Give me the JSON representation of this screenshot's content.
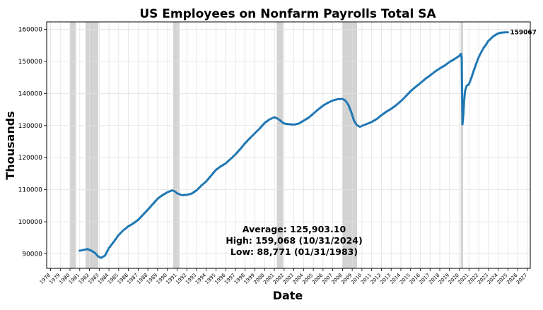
{
  "chart_data": {
    "type": "line",
    "title": "US Employees on Nonfarm Payrolls Total SA",
    "xlabel": "Date",
    "ylabel": "Thousands",
    "ylim": [
      85500,
      162300
    ],
    "xlim": [
      1977.6,
      2027.3
    ],
    "y_ticks": [
      90000,
      100000,
      110000,
      120000,
      130000,
      140000,
      150000,
      160000
    ],
    "y_tick_labels": [
      "90000",
      "100000",
      "110000",
      "120000",
      "130000",
      "140000",
      "150000",
      "160000"
    ],
    "x_tick_labels": [
      "1978",
      "1979",
      "1980",
      "1981",
      "1982",
      "1983",
      "1984",
      "1985",
      "1986",
      "1987",
      "1988",
      "1989",
      "1990",
      "1991",
      "1992",
      "1993",
      "1994",
      "1995",
      "1996",
      "1997",
      "1998",
      "1999",
      "2000",
      "2001",
      "2002",
      "2003",
      "2004",
      "2005",
      "2006",
      "2007",
      "2008",
      "2009",
      "2010",
      "2011",
      "2012",
      "2013",
      "2014",
      "2015",
      "2016",
      "2017",
      "2018",
      "2019",
      "2020",
      "2021",
      "2022",
      "2023",
      "2024",
      "2025",
      "2026",
      "2027"
    ],
    "grid": true,
    "recession_shading": [
      {
        "start": 1980.0,
        "end": 1980.6
      },
      {
        "start": 1981.6,
        "end": 1982.9
      },
      {
        "start": 1990.6,
        "end": 1991.25
      },
      {
        "start": 2001.25,
        "end": 2001.9
      },
      {
        "start": 2008.0,
        "end": 2009.5
      },
      {
        "start": 2020.15,
        "end": 2020.4
      }
    ],
    "series": [
      {
        "name": "",
        "color": "#1f77b4",
        "x": [
          1981.0,
          1981.5,
          1981.8,
          1982.2,
          1982.6,
          1982.9,
          1983.2,
          1983.6,
          1984.0,
          1984.5,
          1985.0,
          1985.5,
          1986.0,
          1986.5,
          1987.0,
          1987.5,
          1988.0,
          1988.5,
          1989.0,
          1989.5,
          1990.0,
          1990.5,
          1990.7,
          1991.0,
          1991.5,
          1992.0,
          1992.5,
          1993.0,
          1993.5,
          1994.0,
          1994.5,
          1995.0,
          1995.5,
          1996.0,
          1996.5,
          1997.0,
          1997.5,
          1998.0,
          1998.5,
          1999.0,
          1999.5,
          2000.0,
          2000.5,
          2001.0,
          2001.3,
          2001.6,
          2001.9,
          2002.2,
          2002.6,
          2003.0,
          2003.5,
          2004.0,
          2004.5,
          2005.0,
          2005.5,
          2006.0,
          2006.5,
          2007.0,
          2007.5,
          2008.0,
          2008.3,
          2008.6,
          2008.9,
          2009.2,
          2009.5,
          2009.8,
          2010.0,
          2010.5,
          2011.0,
          2011.5,
          2012.0,
          2012.5,
          2013.0,
          2013.5,
          2014.0,
          2014.5,
          2015.0,
          2015.5,
          2016.0,
          2016.5,
          2017.0,
          2017.5,
          2018.0,
          2018.5,
          2019.0,
          2019.5,
          2020.0,
          2020.17,
          2020.25,
          2020.33,
          2020.42,
          2020.5,
          2020.6,
          2020.75,
          2021.0,
          2021.25,
          2021.5,
          2021.75,
          2022.0,
          2022.25,
          2022.5,
          2022.75,
          2023.0,
          2023.25,
          2023.5,
          2023.75,
          2024.0,
          2024.25,
          2024.5,
          2024.83,
          2025.0
        ],
        "y": [
          91000,
          91300,
          91500,
          91000,
          90200,
          89200,
          88771,
          89500,
          91800,
          93800,
          95900,
          97400,
          98600,
          99500,
          100600,
          102200,
          103800,
          105500,
          107200,
          108300,
          109200,
          109800,
          109600,
          108900,
          108300,
          108400,
          108800,
          109800,
          111300,
          112600,
          114400,
          116200,
          117300,
          118200,
          119600,
          121000,
          122700,
          124500,
          126100,
          127600,
          129100,
          130800,
          131900,
          132600,
          132200,
          131600,
          130800,
          130500,
          130400,
          130300,
          130600,
          131500,
          132400,
          133700,
          135000,
          136200,
          137100,
          137800,
          138200,
          138300,
          137800,
          136500,
          134200,
          131400,
          130100,
          129600,
          129900,
          130500,
          131100,
          132000,
          133200,
          134300,
          135200,
          136300,
          137600,
          139100,
          140700,
          142000,
          143200,
          144500,
          145600,
          146800,
          147800,
          148700,
          149800,
          150700,
          151700,
          152300,
          151100,
          130400,
          133300,
          137700,
          140800,
          142300,
          142900,
          144900,
          147200,
          149300,
          151300,
          152800,
          154200,
          155200,
          156400,
          157100,
          157800,
          158300,
          158700,
          158900,
          159000,
          159068,
          159067
        ]
      }
    ],
    "last_value_label": "159067",
    "stats_box": {
      "average": "Average: 125,903.10",
      "high": "High: 159,068 (10/31/2024)",
      "low": "Low: 88,771 (01/31/1983)"
    }
  }
}
